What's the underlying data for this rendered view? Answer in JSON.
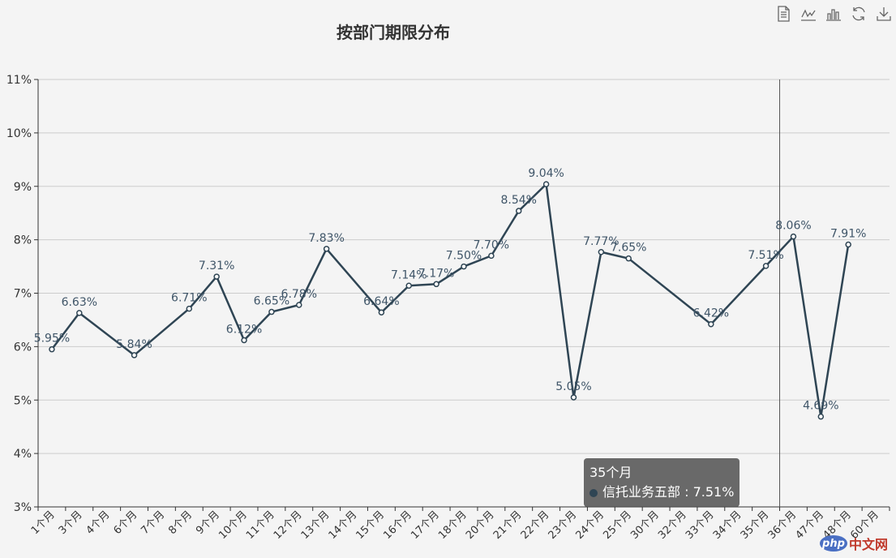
{
  "title": "按部门期限分布",
  "toolbox": {
    "icons": [
      "data-view-icon",
      "line-chart-icon",
      "bar-chart-icon",
      "restore-icon",
      "save-image-icon"
    ]
  },
  "colors": {
    "series": "#2f4554",
    "axis": "#333333",
    "grid": "#cccccc",
    "label": "#3f5568",
    "background": "#f4f4f4"
  },
  "tooltip": {
    "category": "35个月",
    "series": "信托业务五部",
    "value": "7.51%"
  },
  "watermark": {
    "badge": "php",
    "text": "中文网"
  },
  "chart_data": {
    "type": "line",
    "title": "按部门期限分布",
    "xlabel": "",
    "ylabel": "",
    "ylim": [
      3,
      11
    ],
    "yticks": [
      "3%",
      "4%",
      "5%",
      "6%",
      "7%",
      "8%",
      "9%",
      "10%",
      "11%"
    ],
    "grid": true,
    "categories": [
      "1个月",
      "3个月",
      "4个月",
      "6个月",
      "7个月",
      "8个月",
      "9个月",
      "10个月",
      "11个月",
      "12个月",
      "13个月",
      "14个月",
      "15个月",
      "16个月",
      "17个月",
      "18个月",
      "20个月",
      "21个月",
      "22个月",
      "23个月",
      "24个月",
      "25个月",
      "30个月",
      "32个月",
      "33个月",
      "34个月",
      "35个月",
      "36个月",
      "47个月",
      "48个月",
      "60个月"
    ],
    "series": [
      {
        "name": "信托业务五部",
        "values": [
          5.95,
          6.63,
          null,
          5.84,
          null,
          6.71,
          7.31,
          6.12,
          6.65,
          6.78,
          7.83,
          null,
          6.64,
          7.14,
          7.17,
          7.5,
          7.7,
          8.54,
          9.04,
          5.05,
          7.77,
          7.65,
          null,
          null,
          6.42,
          null,
          7.51,
          8.06,
          4.69,
          7.91,
          null
        ],
        "labels": [
          "5.95%",
          "6.63%",
          "",
          "5.84%",
          "",
          "6.71%",
          "7.31%",
          "6.12%",
          "6.65%",
          "6.78%",
          "7.83%",
          "",
          "6.64%",
          "7.14%",
          "7.17%",
          "7.50%",
          "7.70%",
          "8.54%",
          "9.04%",
          "5.05%",
          "7.77%",
          "7.65%",
          "",
          "",
          "6.42%",
          "",
          "7.51%",
          "8.06%",
          "4.69%",
          "7.91%",
          ""
        ]
      }
    ],
    "pointer_category": "35个月"
  }
}
